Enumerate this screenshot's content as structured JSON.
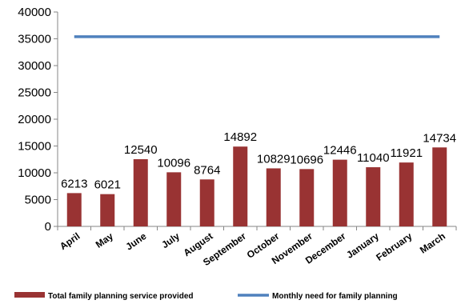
{
  "chart_data": {
    "type": "bar",
    "title": "",
    "xlabel": "",
    "ylabel": "",
    "categories": [
      "April",
      "May",
      "June",
      "July",
      "August",
      "September",
      "October",
      "November",
      "December",
      "January",
      "February",
      "March"
    ],
    "series": [
      {
        "name": "Total family planning service provided",
        "type": "bar",
        "color": "#993333",
        "values": [
          6213,
          6021,
          12540,
          10096,
          8764,
          14892,
          10829,
          10696,
          12446,
          11040,
          11921,
          14734
        ]
      },
      {
        "name": "Monthly need for family planning",
        "type": "line",
        "color": "#4f81bd",
        "values": [
          35400,
          35400,
          35400,
          35400,
          35400,
          35400,
          35400,
          35400,
          35400,
          35400,
          35400,
          35400
        ]
      }
    ],
    "ylim": [
      0,
      40000
    ],
    "yticks": [
      0,
      5000,
      10000,
      15000,
      20000,
      25000,
      30000,
      35000,
      40000
    ],
    "grid": false,
    "legend_position": "bottom"
  }
}
